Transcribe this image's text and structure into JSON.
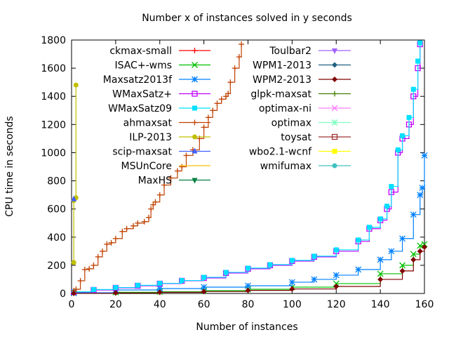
{
  "chart_data": {
    "type": "line",
    "title": "Number x of instances solved in y seconds",
    "xlabel": "Number of instances",
    "ylabel": "CPU time in seconds",
    "xlim": [
      0,
      160
    ],
    "ylim": [
      0,
      1800
    ],
    "x_ticks": [
      "0",
      "20",
      "40",
      "60",
      "80",
      "100",
      "120",
      "140",
      "160"
    ],
    "y_ticks": [
      "0",
      "200",
      "400",
      "600",
      "800",
      "1000",
      "1200",
      "1400",
      "1600",
      "1800"
    ],
    "grid": false,
    "legend_placement": "top",
    "series": [
      {
        "name": "ckmax-small",
        "color": "#ff0000",
        "marker": "plus",
        "x": [],
        "y": []
      },
      {
        "name": "ISAC+-wms",
        "color": "#00c000",
        "marker": "x",
        "x": [
          1,
          20,
          40,
          60,
          80,
          100,
          120,
          140,
          150,
          155,
          158,
          160
        ],
        "y": [
          2,
          8,
          12,
          20,
          30,
          45,
          70,
          140,
          200,
          280,
          340,
          350
        ]
      },
      {
        "name": "Maxsatz2013f",
        "color": "#0080ff",
        "marker": "star",
        "x": [
          1,
          20,
          40,
          60,
          80,
          100,
          110,
          120,
          130,
          140,
          145,
          150,
          155,
          158,
          159,
          160
        ],
        "y": [
          5,
          25,
          35,
          45,
          55,
          80,
          100,
          130,
          170,
          240,
          300,
          390,
          560,
          700,
          750,
          980
        ]
      },
      {
        "name": "WMaxSatz+",
        "color": "#c000ff",
        "marker": "square",
        "x": [
          1,
          10,
          20,
          30,
          40,
          50,
          60,
          70,
          80,
          90,
          100,
          110,
          120,
          130,
          135,
          140,
          143,
          145,
          148,
          150,
          153,
          155,
          157,
          158
        ],
        "y": [
          10,
          25,
          40,
          55,
          70,
          90,
          110,
          145,
          175,
          200,
          230,
          260,
          300,
          370,
          460,
          520,
          600,
          720,
          1000,
          1100,
          1200,
          1400,
          1600,
          1770
        ]
      },
      {
        "name": "WMaxSatz09",
        "color": "#00e0ff",
        "marker": "square-filled",
        "x": [
          1,
          10,
          20,
          30,
          40,
          50,
          60,
          70,
          80,
          90,
          100,
          110,
          120,
          130,
          135,
          140,
          143,
          145,
          148,
          150,
          153,
          155,
          157,
          158
        ],
        "y": [
          12,
          28,
          42,
          58,
          72,
          92,
          115,
          150,
          180,
          205,
          235,
          265,
          310,
          380,
          470,
          530,
          620,
          760,
          1020,
          1120,
          1250,
          1450,
          1650,
          1780
        ]
      },
      {
        "name": "ahmaxsat",
        "color": "#c04000",
        "marker": "plus",
        "x": [
          1,
          2,
          4,
          6,
          8,
          10,
          12,
          14,
          16,
          18,
          20,
          23,
          25,
          28,
          30,
          33,
          35,
          36,
          37,
          38,
          40,
          42,
          45,
          48,
          50,
          52,
          55,
          58,
          60,
          62,
          64,
          66,
          68,
          70,
          71,
          72,
          74,
          76,
          77
        ],
        "y": [
          20,
          30,
          90,
          170,
          175,
          200,
          260,
          300,
          350,
          360,
          390,
          440,
          460,
          480,
          500,
          510,
          540,
          600,
          630,
          650,
          700,
          770,
          820,
          870,
          900,
          980,
          1020,
          1100,
          1180,
          1250,
          1300,
          1350,
          1380,
          1400,
          1420,
          1500,
          1600,
          1680,
          1770
        ]
      },
      {
        "name": "ILP-2013",
        "color": "#c0c000",
        "marker": "circle-filled",
        "x": [
          1,
          1,
          2,
          2
        ],
        "y": [
          220,
          660,
          680,
          1480
        ]
      },
      {
        "name": "scip-maxsat",
        "color": "#4060ff",
        "marker": "triangle-filled",
        "x": [
          1
        ],
        "y": [
          670
        ]
      },
      {
        "name": "MSUnCore",
        "color": "#ffc000",
        "marker": "line",
        "x": [],
        "y": []
      },
      {
        "name": "MaxHS",
        "color": "#008040",
        "marker": "triangle-down-filled",
        "x": [],
        "y": []
      },
      {
        "name": "Toulbar2",
        "color": "#a060ff",
        "marker": "triangle-down-filled",
        "x": [],
        "y": []
      },
      {
        "name": "WPM1-2013",
        "color": "#206080",
        "marker": "diamond-filled",
        "x": [],
        "y": []
      },
      {
        "name": "WPM2-2013",
        "color": "#800000",
        "marker": "diamond-filled",
        "x": [
          1,
          20,
          40,
          60,
          80,
          100,
          120,
          140,
          150,
          155,
          158,
          160
        ],
        "y": [
          1,
          4,
          8,
          14,
          22,
          32,
          50,
          100,
          160,
          240,
          300,
          330
        ]
      },
      {
        "name": "glpk-maxsat",
        "color": "#408000",
        "marker": "plus",
        "x": [],
        "y": []
      },
      {
        "name": "optimax-ni",
        "color": "#ff80ff",
        "marker": "x",
        "x": [],
        "y": []
      },
      {
        "name": "optimax",
        "color": "#80ffc0",
        "marker": "star",
        "x": [],
        "y": []
      },
      {
        "name": "toysat",
        "color": "#a03030",
        "marker": "square",
        "x": [],
        "y": []
      },
      {
        "name": "wbo2.1-wcnf",
        "color": "#ffff00",
        "marker": "square-filled",
        "x": [],
        "y": []
      },
      {
        "name": "wmifumax",
        "color": "#40c0c0",
        "marker": "circle-filled",
        "x": [],
        "y": []
      }
    ]
  }
}
